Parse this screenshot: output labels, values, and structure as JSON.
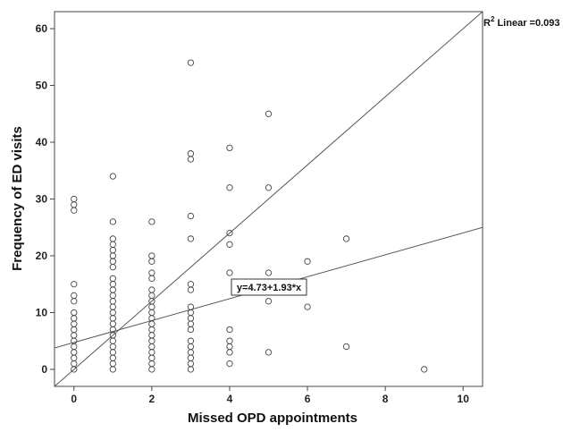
{
  "chart_data": {
    "type": "scatter",
    "xlabel": "Missed OPD appointments",
    "ylabel": "Frequency of ED visits",
    "xlim": [
      -0.5,
      10.5
    ],
    "ylim": [
      -3,
      63
    ],
    "x_ticks": [
      0,
      2,
      4,
      6,
      8,
      10
    ],
    "y_ticks": [
      0,
      10,
      20,
      30,
      40,
      50,
      60
    ],
    "grid": false,
    "points": [
      {
        "x": 0,
        "y": 0
      },
      {
        "x": 0,
        "y": 1
      },
      {
        "x": 0,
        "y": 2
      },
      {
        "x": 0,
        "y": 3
      },
      {
        "x": 0,
        "y": 4
      },
      {
        "x": 0,
        "y": 5
      },
      {
        "x": 0,
        "y": 6
      },
      {
        "x": 0,
        "y": 7
      },
      {
        "x": 0,
        "y": 8
      },
      {
        "x": 0,
        "y": 9
      },
      {
        "x": 0,
        "y": 10
      },
      {
        "x": 0,
        "y": 12
      },
      {
        "x": 0,
        "y": 13
      },
      {
        "x": 0,
        "y": 15
      },
      {
        "x": 0,
        "y": 28
      },
      {
        "x": 0,
        "y": 29
      },
      {
        "x": 0,
        "y": 30
      },
      {
        "x": 1,
        "y": 0
      },
      {
        "x": 1,
        "y": 1
      },
      {
        "x": 1,
        "y": 2
      },
      {
        "x": 1,
        "y": 3
      },
      {
        "x": 1,
        "y": 4
      },
      {
        "x": 1,
        "y": 5
      },
      {
        "x": 1,
        "y": 6
      },
      {
        "x": 1,
        "y": 7
      },
      {
        "x": 1,
        "y": 8
      },
      {
        "x": 1,
        "y": 9
      },
      {
        "x": 1,
        "y": 10
      },
      {
        "x": 1,
        "y": 11
      },
      {
        "x": 1,
        "y": 12
      },
      {
        "x": 1,
        "y": 13
      },
      {
        "x": 1,
        "y": 14
      },
      {
        "x": 1,
        "y": 15
      },
      {
        "x": 1,
        "y": 16
      },
      {
        "x": 1,
        "y": 18
      },
      {
        "x": 1,
        "y": 19
      },
      {
        "x": 1,
        "y": 20
      },
      {
        "x": 1,
        "y": 21
      },
      {
        "x": 1,
        "y": 22
      },
      {
        "x": 1,
        "y": 23
      },
      {
        "x": 1,
        "y": 26
      },
      {
        "x": 1,
        "y": 34
      },
      {
        "x": 2,
        "y": 0
      },
      {
        "x": 2,
        "y": 1
      },
      {
        "x": 2,
        "y": 2
      },
      {
        "x": 2,
        "y": 3
      },
      {
        "x": 2,
        "y": 4
      },
      {
        "x": 2,
        "y": 5
      },
      {
        "x": 2,
        "y": 6
      },
      {
        "x": 2,
        "y": 7
      },
      {
        "x": 2,
        "y": 8
      },
      {
        "x": 2,
        "y": 9
      },
      {
        "x": 2,
        "y": 10
      },
      {
        "x": 2,
        "y": 11
      },
      {
        "x": 2,
        "y": 12
      },
      {
        "x": 2,
        "y": 13
      },
      {
        "x": 2,
        "y": 14
      },
      {
        "x": 2,
        "y": 16
      },
      {
        "x": 2,
        "y": 17
      },
      {
        "x": 2,
        "y": 19
      },
      {
        "x": 2,
        "y": 20
      },
      {
        "x": 2,
        "y": 26
      },
      {
        "x": 3,
        "y": 0
      },
      {
        "x": 3,
        "y": 1
      },
      {
        "x": 3,
        "y": 2
      },
      {
        "x": 3,
        "y": 3
      },
      {
        "x": 3,
        "y": 4
      },
      {
        "x": 3,
        "y": 5
      },
      {
        "x": 3,
        "y": 7
      },
      {
        "x": 3,
        "y": 8
      },
      {
        "x": 3,
        "y": 9
      },
      {
        "x": 3,
        "y": 10
      },
      {
        "x": 3,
        "y": 11
      },
      {
        "x": 3,
        "y": 14
      },
      {
        "x": 3,
        "y": 15
      },
      {
        "x": 3,
        "y": 23
      },
      {
        "x": 3,
        "y": 27
      },
      {
        "x": 3,
        "y": 37
      },
      {
        "x": 3,
        "y": 38
      },
      {
        "x": 3,
        "y": 54
      },
      {
        "x": 4,
        "y": 1
      },
      {
        "x": 4,
        "y": 3
      },
      {
        "x": 4,
        "y": 4
      },
      {
        "x": 4,
        "y": 5
      },
      {
        "x": 4,
        "y": 7
      },
      {
        "x": 4,
        "y": 17
      },
      {
        "x": 4,
        "y": 22
      },
      {
        "x": 4,
        "y": 24
      },
      {
        "x": 4,
        "y": 32
      },
      {
        "x": 4,
        "y": 39
      },
      {
        "x": 5,
        "y": 3
      },
      {
        "x": 5,
        "y": 12
      },
      {
        "x": 5,
        "y": 14
      },
      {
        "x": 5,
        "y": 17
      },
      {
        "x": 5,
        "y": 32
      },
      {
        "x": 5,
        "y": 45
      },
      {
        "x": 6,
        "y": 11
      },
      {
        "x": 6,
        "y": 19
      },
      {
        "x": 7,
        "y": 4
      },
      {
        "x": 7,
        "y": 23
      },
      {
        "x": 9,
        "y": 0
      }
    ],
    "fit_line": {
      "intercept": 4.73,
      "slope": 1.93
    },
    "reference_line": {
      "intercept": 0,
      "slope": 6
    },
    "annotations": {
      "r2_prefix": "R",
      "r2_superscript": "2",
      "r2_suffix": " Linear =0.093",
      "equation": "y=4.73+1.93*x"
    }
  }
}
